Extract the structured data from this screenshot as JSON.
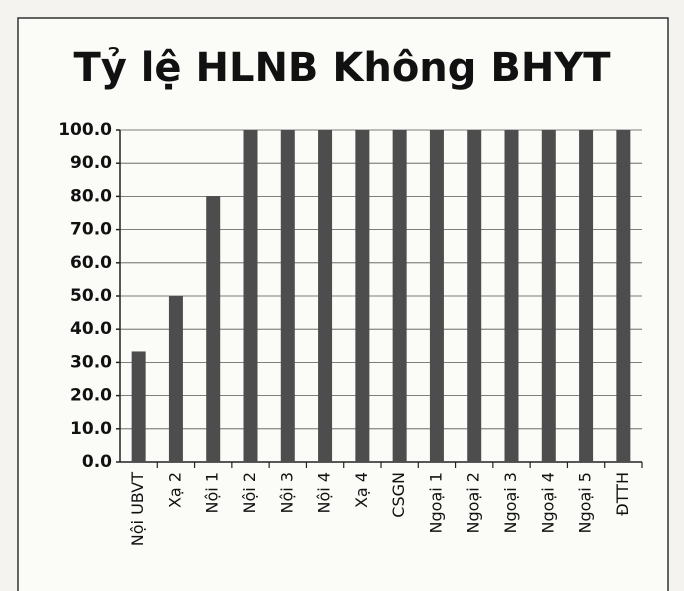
{
  "chart_data": {
    "type": "bar",
    "title": "Tỷ lệ HLNB Không BHYT",
    "categories": [
      "Nội UBVT",
      "Xạ 2",
      "Nội 1",
      "Nội 2",
      "Nội 3",
      "Nội 4",
      "Xạ 4",
      "CSGN",
      "Ngoại 1",
      "Ngoại 2",
      "Ngoại 3",
      "Ngoại 4",
      "Ngoại 5",
      "ĐTTH"
    ],
    "values": [
      33.3,
      50,
      80,
      100,
      100,
      100,
      100,
      100,
      100,
      100,
      100,
      100,
      100,
      100
    ],
    "color": "#4d4d4d",
    "ylim": [
      0,
      100
    ],
    "yticks": [
      {
        "value": 0,
        "label": "0.0"
      },
      {
        "value": 10,
        "label": "10.0"
      },
      {
        "value": 20,
        "label": "20.0"
      },
      {
        "value": 30,
        "label": "30.0"
      },
      {
        "value": 40,
        "label": "40.0"
      },
      {
        "value": 50,
        "label": "50.0"
      },
      {
        "value": 60,
        "label": "60.0"
      },
      {
        "value": 70,
        "label": "70.0"
      },
      {
        "value": 80,
        "label": "80.0"
      },
      {
        "value": 90,
        "label": "90.0"
      },
      {
        "value": 100,
        "label": "100.0"
      }
    ],
    "grid": true
  }
}
